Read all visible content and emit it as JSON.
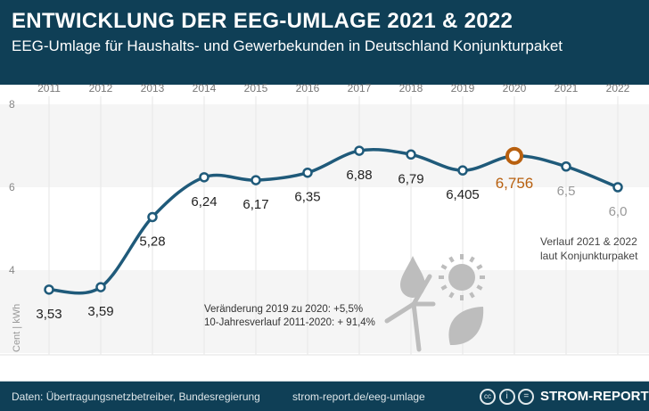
{
  "header": {
    "title": "ENTWICKLUNG DER EEG-UMLAGE 2021 & 2022",
    "subtitle": "EEG-Umlage für Haushalts- und Gewerbekunden in Deutschland Konjunkturpaket"
  },
  "footer": {
    "source": "Daten: Übertragungsnetzbetreiber, Bundesregierung",
    "url": "strom-report.de/eeg-umlage",
    "brand": "STROM-REPORT",
    "license_icons": [
      "cc-icon",
      "by-icon",
      "nd-icon"
    ]
  },
  "chart_data": {
    "type": "line",
    "x": [
      "2011",
      "2012",
      "2013",
      "2014",
      "2015",
      "2016",
      "2017",
      "2018",
      "2019",
      "2020",
      "2021",
      "2022"
    ],
    "values": [
      3.53,
      3.59,
      5.28,
      6.24,
      6.17,
      6.35,
      6.88,
      6.79,
      6.405,
      6.756,
      6.5,
      6.0
    ],
    "labels": [
      "3,53",
      "3,59",
      "5,28",
      "6,24",
      "6,17",
      "6,35",
      "6,88",
      "6,79",
      "6,405",
      "6,756",
      "6,5",
      "6,0"
    ],
    "ylabel": "Cent | kWh",
    "yticks": [
      "8",
      "6",
      "4"
    ],
    "ylim": [
      2,
      8
    ],
    "grid": true,
    "highlight": "2020",
    "projected": [
      "2021",
      "2022"
    ],
    "annotations": {
      "projection": [
        "Verlauf 2021 & 2022",
        "laut Konjunkturpaket"
      ],
      "change": [
        "Veränderung 2019 zu 2020: +5,5%",
        "10-Jahresverlauf 2011-2020: + 91,4%"
      ]
    },
    "colors": {
      "line": "#1f5a7a",
      "highlight": "#b8600f",
      "projected_label": "#999999",
      "label": "#222222"
    },
    "decor_icons": [
      "water-drop-icon",
      "sun-icon",
      "wind-turbine-icon",
      "leaf-icon"
    ]
  }
}
